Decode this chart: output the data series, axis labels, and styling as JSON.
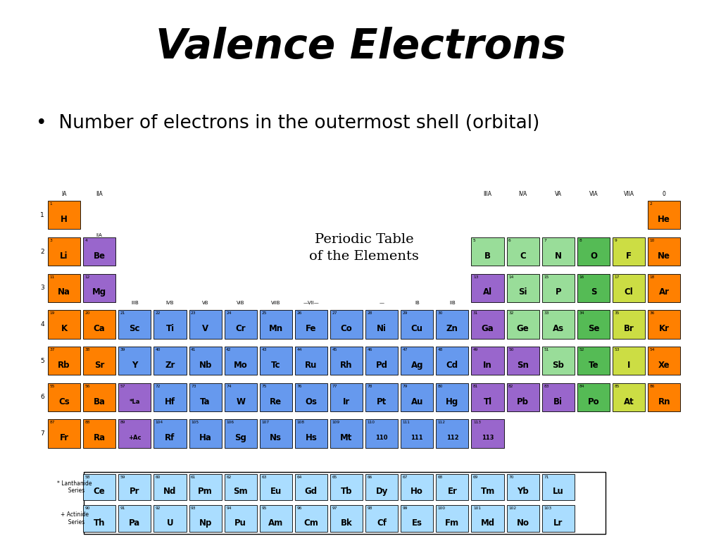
{
  "title": "Valence Electrons",
  "bullet": "•  Number of electrons in the outermost shell (orbital)",
  "pt_title_line1": "Periodic Table",
  "pt_title_line2": "of the Elements",
  "color_map": {
    "orange": "#FF8000",
    "purple": "#9966CC",
    "blue": "#6699EE",
    "green": "#55BB55",
    "green_light": "#99DD99",
    "yellow": "#CCDD44",
    "light_blue": "#AADDFF"
  },
  "elements": [
    {
      "symbol": "H",
      "number": "1",
      "col": 1,
      "row": 1,
      "color": "orange"
    },
    {
      "symbol": "He",
      "number": "2",
      "col": 18,
      "row": 1,
      "color": "orange"
    },
    {
      "symbol": "Li",
      "number": "3",
      "col": 1,
      "row": 2,
      "color": "orange"
    },
    {
      "symbol": "Be",
      "number": "4",
      "col": 2,
      "row": 2,
      "color": "purple"
    },
    {
      "symbol": "B",
      "number": "5",
      "col": 13,
      "row": 2,
      "color": "green_light"
    },
    {
      "symbol": "C",
      "number": "6",
      "col": 14,
      "row": 2,
      "color": "green_light"
    },
    {
      "symbol": "N",
      "number": "7",
      "col": 15,
      "row": 2,
      "color": "green_light"
    },
    {
      "symbol": "O",
      "number": "8",
      "col": 16,
      "row": 2,
      "color": "green"
    },
    {
      "symbol": "F",
      "number": "9",
      "col": 17,
      "row": 2,
      "color": "yellow"
    },
    {
      "symbol": "Ne",
      "number": "10",
      "col": 18,
      "row": 2,
      "color": "orange"
    },
    {
      "symbol": "Na",
      "number": "11",
      "col": 1,
      "row": 3,
      "color": "orange"
    },
    {
      "symbol": "Mg",
      "number": "12",
      "col": 2,
      "row": 3,
      "color": "purple"
    },
    {
      "symbol": "Al",
      "number": "13",
      "col": 13,
      "row": 3,
      "color": "purple"
    },
    {
      "symbol": "Si",
      "number": "14",
      "col": 14,
      "row": 3,
      "color": "green_light"
    },
    {
      "symbol": "P",
      "number": "15",
      "col": 15,
      "row": 3,
      "color": "green_light"
    },
    {
      "symbol": "S",
      "number": "16",
      "col": 16,
      "row": 3,
      "color": "green"
    },
    {
      "symbol": "Cl",
      "number": "17",
      "col": 17,
      "row": 3,
      "color": "yellow"
    },
    {
      "symbol": "Ar",
      "number": "18",
      "col": 18,
      "row": 3,
      "color": "orange"
    },
    {
      "symbol": "K",
      "number": "19",
      "col": 1,
      "row": 4,
      "color": "orange"
    },
    {
      "symbol": "Ca",
      "number": "20",
      "col": 2,
      "row": 4,
      "color": "orange"
    },
    {
      "symbol": "Sc",
      "number": "21",
      "col": 3,
      "row": 4,
      "color": "blue"
    },
    {
      "symbol": "Ti",
      "number": "22",
      "col": 4,
      "row": 4,
      "color": "blue"
    },
    {
      "symbol": "V",
      "number": "23",
      "col": 5,
      "row": 4,
      "color": "blue"
    },
    {
      "symbol": "Cr",
      "number": "24",
      "col": 6,
      "row": 4,
      "color": "blue"
    },
    {
      "symbol": "Mn",
      "number": "25",
      "col": 7,
      "row": 4,
      "color": "blue"
    },
    {
      "symbol": "Fe",
      "number": "26",
      "col": 8,
      "row": 4,
      "color": "blue"
    },
    {
      "symbol": "Co",
      "number": "27",
      "col": 9,
      "row": 4,
      "color": "blue"
    },
    {
      "symbol": "Ni",
      "number": "28",
      "col": 10,
      "row": 4,
      "color": "blue"
    },
    {
      "symbol": "Cu",
      "number": "29",
      "col": 11,
      "row": 4,
      "color": "blue"
    },
    {
      "symbol": "Zn",
      "number": "30",
      "col": 12,
      "row": 4,
      "color": "blue"
    },
    {
      "symbol": "Ga",
      "number": "31",
      "col": 13,
      "row": 4,
      "color": "purple"
    },
    {
      "symbol": "Ge",
      "number": "32",
      "col": 14,
      "row": 4,
      "color": "green_light"
    },
    {
      "symbol": "As",
      "number": "33",
      "col": 15,
      "row": 4,
      "color": "green_light"
    },
    {
      "symbol": "Se",
      "number": "34",
      "col": 16,
      "row": 4,
      "color": "green"
    },
    {
      "symbol": "Br",
      "number": "35",
      "col": 17,
      "row": 4,
      "color": "yellow"
    },
    {
      "symbol": "Kr",
      "number": "36",
      "col": 18,
      "row": 4,
      "color": "orange"
    },
    {
      "symbol": "Rb",
      "number": "37",
      "col": 1,
      "row": 5,
      "color": "orange"
    },
    {
      "symbol": "Sr",
      "number": "38",
      "col": 2,
      "row": 5,
      "color": "orange"
    },
    {
      "symbol": "Y",
      "number": "39",
      "col": 3,
      "row": 5,
      "color": "blue"
    },
    {
      "symbol": "Zr",
      "number": "40",
      "col": 4,
      "row": 5,
      "color": "blue"
    },
    {
      "symbol": "Nb",
      "number": "41",
      "col": 5,
      "row": 5,
      "color": "blue"
    },
    {
      "symbol": "Mo",
      "number": "42",
      "col": 6,
      "row": 5,
      "color": "blue"
    },
    {
      "symbol": "Tc",
      "number": "43",
      "col": 7,
      "row": 5,
      "color": "blue"
    },
    {
      "symbol": "Ru",
      "number": "44",
      "col": 8,
      "row": 5,
      "color": "blue"
    },
    {
      "symbol": "Rh",
      "number": "45",
      "col": 9,
      "row": 5,
      "color": "blue"
    },
    {
      "symbol": "Pd",
      "number": "46",
      "col": 10,
      "row": 5,
      "color": "blue"
    },
    {
      "symbol": "Ag",
      "number": "47",
      "col": 11,
      "row": 5,
      "color": "blue"
    },
    {
      "symbol": "Cd",
      "number": "48",
      "col": 12,
      "row": 5,
      "color": "blue"
    },
    {
      "symbol": "In",
      "number": "49",
      "col": 13,
      "row": 5,
      "color": "purple"
    },
    {
      "symbol": "Sn",
      "number": "50",
      "col": 14,
      "row": 5,
      "color": "purple"
    },
    {
      "symbol": "Sb",
      "number": "51",
      "col": 15,
      "row": 5,
      "color": "green_light"
    },
    {
      "symbol": "Te",
      "number": "52",
      "col": 16,
      "row": 5,
      "color": "green"
    },
    {
      "symbol": "I",
      "number": "53",
      "col": 17,
      "row": 5,
      "color": "yellow"
    },
    {
      "symbol": "Xe",
      "number": "54",
      "col": 18,
      "row": 5,
      "color": "orange"
    },
    {
      "symbol": "Cs",
      "number": "55",
      "col": 1,
      "row": 6,
      "color": "orange"
    },
    {
      "symbol": "Ba",
      "number": "56",
      "col": 2,
      "row": 6,
      "color": "orange"
    },
    {
      "symbol": "*La",
      "number": "57",
      "col": 3,
      "row": 6,
      "color": "purple"
    },
    {
      "symbol": "Hf",
      "number": "72",
      "col": 4,
      "row": 6,
      "color": "blue"
    },
    {
      "symbol": "Ta",
      "number": "73",
      "col": 5,
      "row": 6,
      "color": "blue"
    },
    {
      "symbol": "W",
      "number": "74",
      "col": 6,
      "row": 6,
      "color": "blue"
    },
    {
      "symbol": "Re",
      "number": "75",
      "col": 7,
      "row": 6,
      "color": "blue"
    },
    {
      "symbol": "Os",
      "number": "76",
      "col": 8,
      "row": 6,
      "color": "blue"
    },
    {
      "symbol": "Ir",
      "number": "77",
      "col": 9,
      "row": 6,
      "color": "blue"
    },
    {
      "symbol": "Pt",
      "number": "78",
      "col": 10,
      "row": 6,
      "color": "blue"
    },
    {
      "symbol": "Au",
      "number": "79",
      "col": 11,
      "row": 6,
      "color": "blue"
    },
    {
      "symbol": "Hg",
      "number": "80",
      "col": 12,
      "row": 6,
      "color": "blue"
    },
    {
      "symbol": "Tl",
      "number": "81",
      "col": 13,
      "row": 6,
      "color": "purple"
    },
    {
      "symbol": "Pb",
      "number": "82",
      "col": 14,
      "row": 6,
      "color": "purple"
    },
    {
      "symbol": "Bi",
      "number": "83",
      "col": 15,
      "row": 6,
      "color": "purple"
    },
    {
      "symbol": "Po",
      "number": "84",
      "col": 16,
      "row": 6,
      "color": "green"
    },
    {
      "symbol": "At",
      "number": "85",
      "col": 17,
      "row": 6,
      "color": "yellow"
    },
    {
      "symbol": "Rn",
      "number": "86",
      "col": 18,
      "row": 6,
      "color": "orange"
    },
    {
      "symbol": "Fr",
      "number": "87",
      "col": 1,
      "row": 7,
      "color": "orange"
    },
    {
      "symbol": "Ra",
      "number": "88",
      "col": 2,
      "row": 7,
      "color": "orange"
    },
    {
      "symbol": "+Ac",
      "number": "89",
      "col": 3,
      "row": 7,
      "color": "purple"
    },
    {
      "symbol": "Rf",
      "number": "104",
      "col": 4,
      "row": 7,
      "color": "blue"
    },
    {
      "symbol": "Ha",
      "number": "105",
      "col": 5,
      "row": 7,
      "color": "blue"
    },
    {
      "symbol": "Sg",
      "number": "106",
      "col": 6,
      "row": 7,
      "color": "blue"
    },
    {
      "symbol": "Ns",
      "number": "107",
      "col": 7,
      "row": 7,
      "color": "blue"
    },
    {
      "symbol": "Hs",
      "number": "108",
      "col": 8,
      "row": 7,
      "color": "blue"
    },
    {
      "symbol": "Mt",
      "number": "109",
      "col": 9,
      "row": 7,
      "color": "blue"
    },
    {
      "symbol": "110",
      "number": "110",
      "col": 10,
      "row": 7,
      "color": "blue"
    },
    {
      "symbol": "111",
      "number": "111",
      "col": 11,
      "row": 7,
      "color": "blue"
    },
    {
      "symbol": "112",
      "number": "112",
      "col": 12,
      "row": 7,
      "color": "blue"
    },
    {
      "symbol": "113",
      "number": "113",
      "col": 13,
      "row": 7,
      "color": "purple"
    }
  ],
  "lanthanides": [
    {
      "symbol": "Ce",
      "number": "58"
    },
    {
      "symbol": "Pr",
      "number": "59"
    },
    {
      "symbol": "Nd",
      "number": "60"
    },
    {
      "symbol": "Pm",
      "number": "61"
    },
    {
      "symbol": "Sm",
      "number": "62"
    },
    {
      "symbol": "Eu",
      "number": "63"
    },
    {
      "symbol": "Gd",
      "number": "64"
    },
    {
      "symbol": "Tb",
      "number": "65"
    },
    {
      "symbol": "Dy",
      "number": "66"
    },
    {
      "symbol": "Ho",
      "number": "67"
    },
    {
      "symbol": "Er",
      "number": "68"
    },
    {
      "symbol": "Tm",
      "number": "69"
    },
    {
      "symbol": "Yb",
      "number": "70"
    },
    {
      "symbol": "Lu",
      "number": "71"
    }
  ],
  "actinides": [
    {
      "symbol": "Th",
      "number": "90"
    },
    {
      "symbol": "Pa",
      "number": "91"
    },
    {
      "symbol": "U",
      "number": "92"
    },
    {
      "symbol": "Np",
      "number": "93"
    },
    {
      "symbol": "Pu",
      "number": "94"
    },
    {
      "symbol": "Am",
      "number": "95"
    },
    {
      "symbol": "Cm",
      "number": "96"
    },
    {
      "symbol": "Bk",
      "number": "97"
    },
    {
      "symbol": "Cf",
      "number": "98"
    },
    {
      "symbol": "Es",
      "number": "99"
    },
    {
      "symbol": "Fm",
      "number": "100"
    },
    {
      "symbol": "Md",
      "number": "101"
    },
    {
      "symbol": "No",
      "number": "102"
    },
    {
      "symbol": "Lr",
      "number": "103"
    }
  ]
}
